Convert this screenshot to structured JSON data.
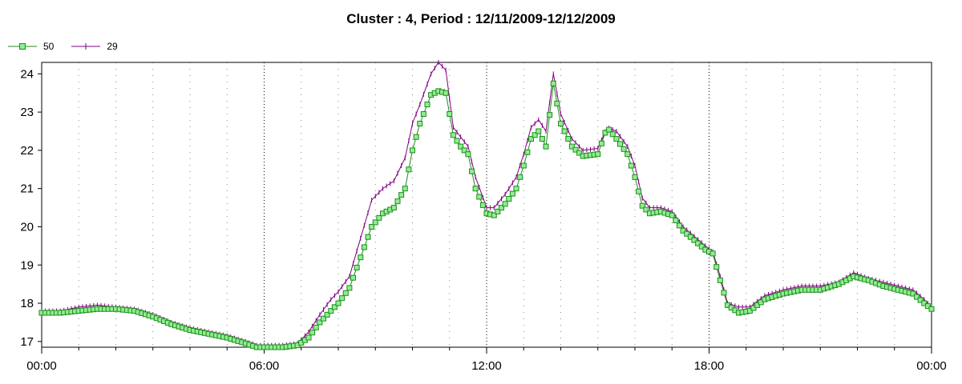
{
  "chart_data": {
    "type": "line",
    "title": "Cluster : 4, Period : 12/11/2009-12/12/2009",
    "xlabel": "",
    "ylabel": "",
    "x_tick_labels": [
      "00:00",
      "06:00",
      "12:00",
      "18:00",
      "00:00"
    ],
    "x_tick_hours": [
      0,
      6,
      12,
      18,
      24
    ],
    "y_ticks": [
      17,
      18,
      19,
      20,
      21,
      22,
      23,
      24
    ],
    "xlim": [
      0,
      24
    ],
    "ylim": [
      16.85,
      24.3
    ],
    "grid": "dotted vertical lines every hour, heavier at 6-hour marks",
    "legend_position": "top-left",
    "series": [
      {
        "name": "50",
        "color": "#1e8c1e",
        "marker": "square",
        "marker_fill": "#90ee90",
        "points": [
          [
            0,
            17.75
          ],
          [
            0.5,
            17.75
          ],
          [
            1,
            17.8
          ],
          [
            1.5,
            17.85
          ],
          [
            2,
            17.85
          ],
          [
            2.5,
            17.8
          ],
          [
            3,
            17.65
          ],
          [
            3.5,
            17.45
          ],
          [
            4,
            17.3
          ],
          [
            4.5,
            17.2
          ],
          [
            5,
            17.1
          ],
          [
            5.5,
            16.95
          ],
          [
            5.8,
            16.85
          ],
          [
            6.5,
            16.85
          ],
          [
            6.9,
            16.9
          ],
          [
            7.2,
            17.1
          ],
          [
            7.5,
            17.5
          ],
          [
            7.8,
            17.8
          ],
          [
            8,
            18.0
          ],
          [
            8.3,
            18.4
          ],
          [
            8.6,
            19.2
          ],
          [
            8.9,
            20.0
          ],
          [
            9.2,
            20.35
          ],
          [
            9.5,
            20.5
          ],
          [
            9.8,
            21.0
          ],
          [
            10,
            22.0
          ],
          [
            10.2,
            22.7
          ],
          [
            10.5,
            23.45
          ],
          [
            10.7,
            23.55
          ],
          [
            10.9,
            23.5
          ],
          [
            11.1,
            22.4
          ],
          [
            11.3,
            22.1
          ],
          [
            11.5,
            21.9
          ],
          [
            11.7,
            21.0
          ],
          [
            12,
            20.35
          ],
          [
            12.2,
            20.3
          ],
          [
            12.5,
            20.6
          ],
          [
            12.8,
            21.0
          ],
          [
            13,
            21.6
          ],
          [
            13.2,
            22.3
          ],
          [
            13.4,
            22.5
          ],
          [
            13.6,
            22.1
          ],
          [
            13.8,
            23.75
          ],
          [
            14.0,
            22.7
          ],
          [
            14.3,
            22.1
          ],
          [
            14.6,
            21.85
          ],
          [
            15,
            21.9
          ],
          [
            15.25,
            22.6
          ],
          [
            15.5,
            22.3
          ],
          [
            15.8,
            21.9
          ],
          [
            16,
            21.3
          ],
          [
            16.2,
            20.55
          ],
          [
            16.4,
            20.35
          ],
          [
            16.7,
            20.4
          ],
          [
            17,
            20.3
          ],
          [
            17.3,
            19.9
          ],
          [
            17.6,
            19.65
          ],
          [
            17.9,
            19.4
          ],
          [
            18.1,
            19.3
          ],
          [
            18.3,
            18.6
          ],
          [
            18.5,
            17.95
          ],
          [
            18.8,
            17.75
          ],
          [
            19.1,
            17.8
          ],
          [
            19.5,
            18.1
          ],
          [
            20,
            18.25
          ],
          [
            20.5,
            18.35
          ],
          [
            21,
            18.35
          ],
          [
            21.5,
            18.5
          ],
          [
            21.9,
            18.7
          ],
          [
            22.3,
            18.6
          ],
          [
            22.7,
            18.45
          ],
          [
            23.1,
            18.35
          ],
          [
            23.5,
            18.25
          ],
          [
            23.8,
            18.0
          ],
          [
            24,
            17.85
          ]
        ]
      },
      {
        "name": "29",
        "color": "#800080",
        "marker": "cross",
        "marker_fill": "#800080",
        "points": [
          [
            0,
            17.8
          ],
          [
            0.5,
            17.8
          ],
          [
            1,
            17.9
          ],
          [
            1.5,
            17.95
          ],
          [
            2,
            17.9
          ],
          [
            2.5,
            17.85
          ],
          [
            3,
            17.7
          ],
          [
            3.5,
            17.5
          ],
          [
            4,
            17.35
          ],
          [
            4.5,
            17.25
          ],
          [
            5,
            17.15
          ],
          [
            5.5,
            17.0
          ],
          [
            5.8,
            16.9
          ],
          [
            6.5,
            16.9
          ],
          [
            6.9,
            16.95
          ],
          [
            7.2,
            17.25
          ],
          [
            7.5,
            17.7
          ],
          [
            7.8,
            18.1
          ],
          [
            8,
            18.3
          ],
          [
            8.3,
            18.7
          ],
          [
            8.6,
            19.7
          ],
          [
            8.9,
            20.7
          ],
          [
            9.2,
            21.0
          ],
          [
            9.5,
            21.2
          ],
          [
            9.8,
            21.8
          ],
          [
            10,
            22.7
          ],
          [
            10.2,
            23.2
          ],
          [
            10.5,
            24.0
          ],
          [
            10.7,
            24.3
          ],
          [
            10.9,
            24.1
          ],
          [
            11.1,
            22.6
          ],
          [
            11.3,
            22.35
          ],
          [
            11.5,
            22.1
          ],
          [
            11.7,
            21.3
          ],
          [
            12,
            20.5
          ],
          [
            12.2,
            20.5
          ],
          [
            12.5,
            20.85
          ],
          [
            12.8,
            21.3
          ],
          [
            13,
            21.9
          ],
          [
            13.2,
            22.6
          ],
          [
            13.4,
            22.8
          ],
          [
            13.6,
            22.5
          ],
          [
            13.8,
            24.0
          ],
          [
            14.0,
            22.95
          ],
          [
            14.3,
            22.3
          ],
          [
            14.6,
            22.0
          ],
          [
            15,
            22.05
          ],
          [
            15.25,
            22.6
          ],
          [
            15.5,
            22.5
          ],
          [
            15.8,
            22.1
          ],
          [
            16,
            21.6
          ],
          [
            16.2,
            20.75
          ],
          [
            16.4,
            20.5
          ],
          [
            16.7,
            20.5
          ],
          [
            17,
            20.4
          ],
          [
            17.3,
            20.0
          ],
          [
            17.6,
            19.75
          ],
          [
            17.9,
            19.5
          ],
          [
            18.1,
            19.35
          ],
          [
            18.3,
            18.7
          ],
          [
            18.5,
            18.0
          ],
          [
            18.8,
            17.9
          ],
          [
            19.1,
            17.9
          ],
          [
            19.5,
            18.2
          ],
          [
            20,
            18.35
          ],
          [
            20.5,
            18.45
          ],
          [
            21,
            18.45
          ],
          [
            21.5,
            18.55
          ],
          [
            21.9,
            18.8
          ],
          [
            22.3,
            18.65
          ],
          [
            22.7,
            18.55
          ],
          [
            23.1,
            18.45
          ],
          [
            23.5,
            18.35
          ],
          [
            23.8,
            18.1
          ],
          [
            24,
            17.9
          ]
        ]
      }
    ]
  }
}
